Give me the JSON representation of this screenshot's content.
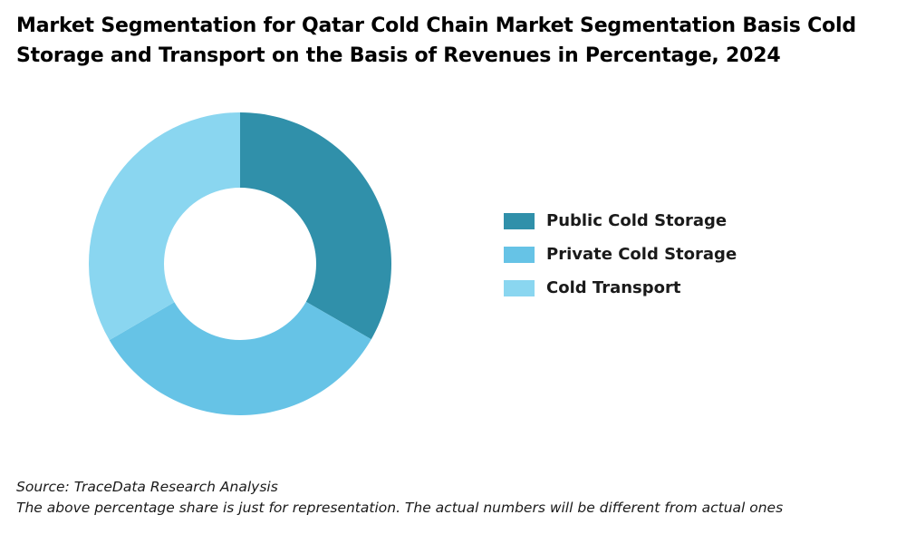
{
  "chart_data": {
    "type": "pie",
    "subtype": "donut",
    "title": "Market Segmentation for Qatar Cold Chain Market Segmentation Basis Cold Storage and Transport on the Basis of Revenues in Percentage, 2024",
    "categories": [
      "Public Cold Storage",
      "Private Cold Storage",
      "Cold Transport"
    ],
    "values": [
      33.3,
      33.3,
      33.4
    ],
    "colors": [
      "#3090aa",
      "#66c3e6",
      "#8ad6f0"
    ],
    "legend_position": "right"
  },
  "footer": {
    "source": "Source: TraceData Research Analysis",
    "disclaimer": "The above percentage share is just for representation. The actual numbers will be different from actual ones"
  }
}
